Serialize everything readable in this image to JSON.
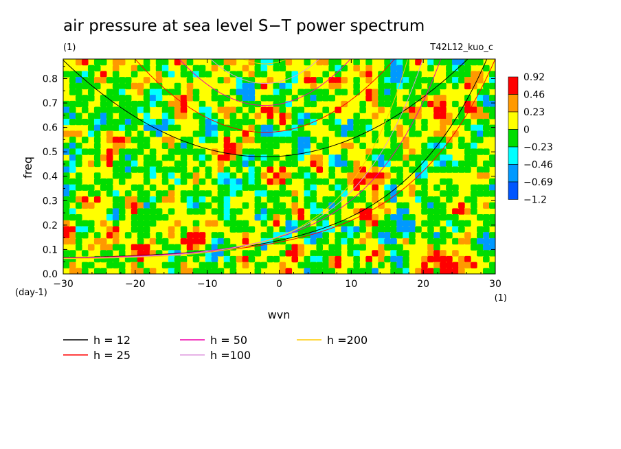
{
  "chart_data": {
    "type": "heatmap",
    "title": "air pressure at sea level S−T power spectrum",
    "subtitle_left": "(1)",
    "subtitle_right": "T42L12_kuo_c",
    "xlabel": "wvn",
    "ylabel": "freq",
    "x_unit": "(1)",
    "y_unit": "(day-1)",
    "xlim": [
      -30,
      30
    ],
    "ylim": [
      0,
      0.88
    ],
    "x_ticks": [
      -30,
      -20,
      -10,
      0,
      10,
      20,
      30
    ],
    "y_ticks": [
      0.0,
      0.1,
      0.2,
      0.3,
      0.4,
      0.5,
      0.6,
      0.7,
      0.8
    ],
    "colorbar": {
      "levels": [
        "0.92",
        "0.46",
        "0.23",
        "0",
        "−0.23",
        "−0.46",
        "−0.69",
        "−1.2"
      ],
      "colors": [
        "#ff0000",
        "#ff9900",
        "#ffff00",
        "#00dd00",
        "#00ffff",
        "#0099ff",
        "#0055ff"
      ]
    },
    "dispersion_curves": [
      {
        "name": "h = 12",
        "color": "#000000"
      },
      {
        "name": "h = 25",
        "color": "#ff0000"
      },
      {
        "name": "h = 50",
        "color": "#ee00aa"
      },
      {
        "name": "h =100",
        "color": "#dd99dd"
      },
      {
        "name": "h =200",
        "color": "#ffcc00"
      }
    ]
  }
}
